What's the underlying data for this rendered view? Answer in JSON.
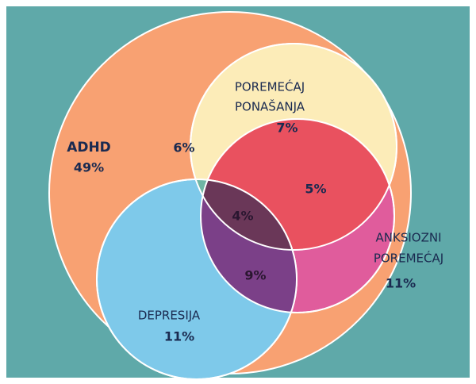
{
  "sets": [
    {
      "label": [
        "ADHD"
      ],
      "value": "49%"
    },
    {
      "label": [
        "POREMEĆAJ",
        "PONAŠANJA"
      ],
      "value": "7%"
    },
    {
      "label": [
        "ANKSIOZNI",
        "POREMEĆAJ"
      ],
      "value": "11%"
    },
    {
      "label": [
        "DEPRESIJA"
      ],
      "value": "11%"
    }
  ],
  "overlaps": {
    "adhd_behavior_depression": "6%",
    "behavior_anxiety": "5%",
    "all": "4%",
    "anxiety_depression": "9%"
  }
}
